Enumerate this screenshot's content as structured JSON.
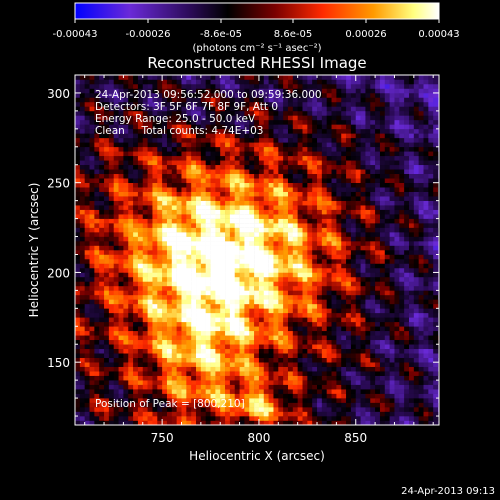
{
  "colorbar": {
    "tick_labels": [
      "-0.00043",
      "-0.00026",
      "-8.6e-05",
      "8.6e-05",
      "0.00026",
      "0.00043"
    ],
    "unit_label": "(photons cm⁻² s⁻¹ asec⁻²)",
    "range": [
      -0.00043,
      0.00043
    ]
  },
  "chart_data": {
    "type": "heatmap",
    "title": "Reconstructed RHESSI Image",
    "xlabel": "Heliocentric X (arcsec)",
    "ylabel": "Heliocentric Y (arcsec)",
    "x_ticks": [
      750,
      800,
      850
    ],
    "y_ticks": [
      150,
      200,
      250,
      300
    ],
    "xlim": [
      705,
      893
    ],
    "ylim": [
      115,
      310
    ],
    "grid": false,
    "peak": [
      800,
      210
    ],
    "annotations": [
      "24-Apr-2013 09:56:52.000 to 09:59:36.000",
      "Detectors: 3F 5F 6F 7F 8F 9F, Att 0",
      "Energy Range: 25.0 - 50.0 keV",
      "Clean     Total counts: 4.74E+03"
    ],
    "peak_label": "Position of Peak = [800,210]",
    "colormap_stops": [
      "#0000ff",
      "#7a1fd0",
      "#3a1070",
      "#000000",
      "#8a0000",
      "#ff3000",
      "#ffa000",
      "#ffffb0",
      "#ffffff"
    ]
  },
  "footer": {
    "timestamp": "24-Apr-2013 09:13"
  }
}
